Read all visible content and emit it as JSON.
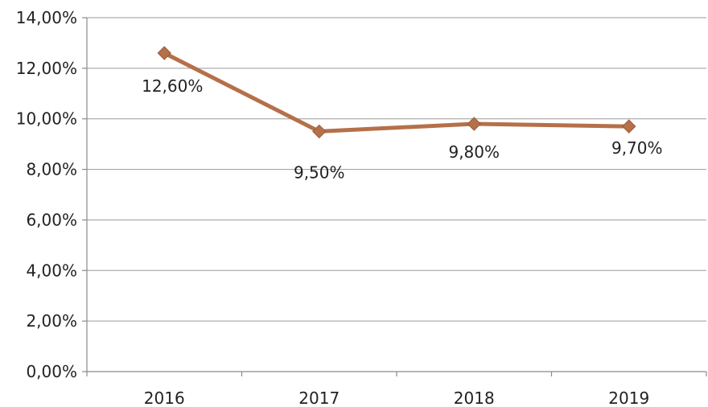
{
  "chart_data": {
    "type": "line",
    "categories": [
      "2016",
      "2017",
      "2018",
      "2019"
    ],
    "series": [
      {
        "values": [
          12.6,
          9.5,
          9.8,
          9.7
        ],
        "data_labels": [
          "12,60%",
          "9,50%",
          "9,80%",
          "9,70%"
        ],
        "color": "#b5704a",
        "marker": "diamond"
      }
    ],
    "ylim": [
      0,
      14
    ],
    "yticks": [
      0,
      2,
      4,
      6,
      8,
      10,
      12,
      14
    ],
    "ytick_labels": [
      "0,00%",
      "2,00%",
      "4,00%",
      "6,00%",
      "8,00%",
      "10,00%",
      "12,00%",
      "14,00%"
    ],
    "grid": true,
    "legend": "none"
  }
}
